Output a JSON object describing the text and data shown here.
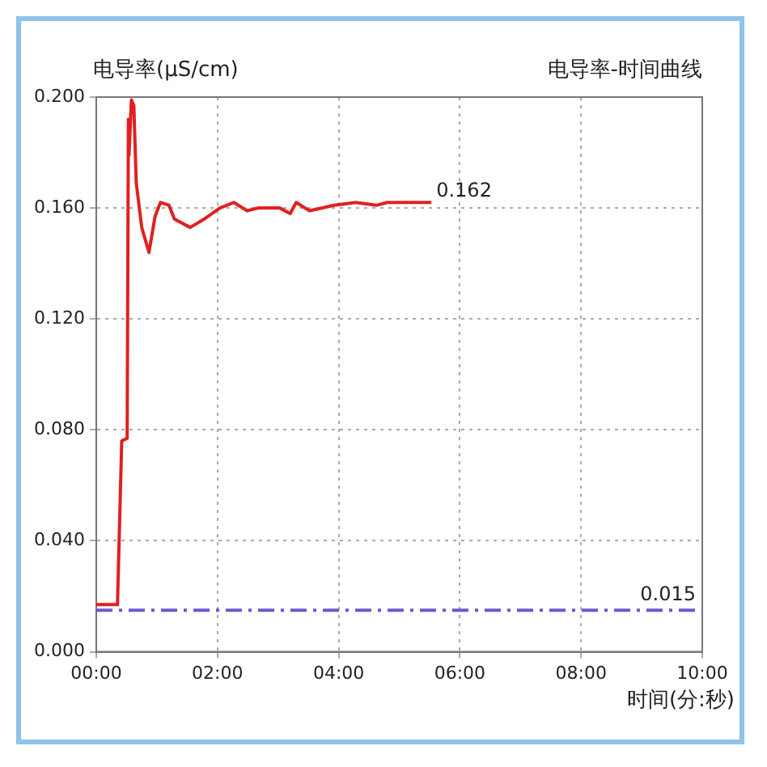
{
  "chart_data": {
    "type": "line",
    "title": "电导率-时间曲线",
    "ylabel": "电导率(μS/cm)",
    "xlabel": "时间(分:秒)",
    "x": [
      0,
      0.35,
      0.42,
      0.51,
      0.53,
      0.54,
      0.58,
      0.62,
      0.66,
      0.75,
      0.87,
      0.97,
      1.06,
      1.2,
      1.29,
      1.55,
      1.78,
      2.04,
      2.27,
      2.49,
      2.67,
      3.03,
      3.2,
      3.3,
      3.52,
      3.92,
      4.28,
      4.63,
      4.8,
      5.53
    ],
    "series": [
      {
        "color": "#e02020",
        "values": [
          0.017,
          0.017,
          0.076,
          0.077,
          0.192,
          0.179,
          0.199,
          0.197,
          0.169,
          0.153,
          0.144,
          0.157,
          0.162,
          0.161,
          0.156,
          0.153,
          0.156,
          0.16,
          0.162,
          0.159,
          0.16,
          0.16,
          0.158,
          0.162,
          0.159,
          0.161,
          0.162,
          0.161,
          0.162,
          0.162
        ]
      }
    ],
    "xlim": [
      0,
      10
    ],
    "xticks": [
      {
        "value": 0,
        "label": "00:00"
      },
      {
        "value": 2,
        "label": "02:00"
      },
      {
        "value": 4,
        "label": "04:00"
      },
      {
        "value": 6,
        "label": "06:00"
      },
      {
        "value": 8,
        "label": "08:00"
      },
      {
        "value": 10,
        "label": "10:00"
      }
    ],
    "ylim": [
      0,
      0.2
    ],
    "yticks": [
      {
        "value": 0,
        "label": "0.000"
      },
      {
        "value": 0.04,
        "label": "0.040"
      },
      {
        "value": 0.08,
        "label": "0.080"
      },
      {
        "value": 0.12,
        "label": "0.120"
      },
      {
        "value": 0.16,
        "label": "0.160"
      },
      {
        "value": 0.2,
        "label": "0.200"
      }
    ],
    "ref_lines": [
      {
        "axis": "y",
        "value": 0.015,
        "label": "0.015",
        "color": "#6a5acd",
        "line_style": "dashdot"
      }
    ],
    "annotations": [
      {
        "text": "0.162",
        "x": 5.53,
        "y": 0.162
      }
    ],
    "grid": true,
    "legend": false,
    "marker": "none",
    "line_style": "solid"
  }
}
